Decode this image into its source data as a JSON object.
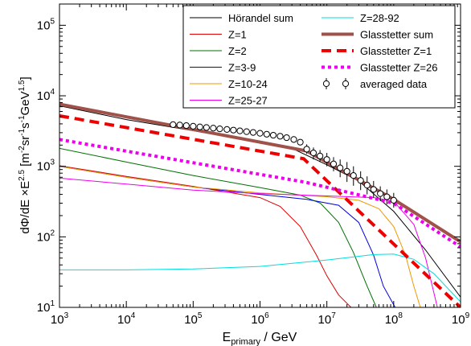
{
  "chart_data": {
    "type": "line",
    "xlabel_main": "E",
    "xlabel_sub": "primary",
    "xlabel_unit": " / GeV",
    "ylabel": {
      "p1": "dΦ/dE ×E",
      "p1_sup": "2.5",
      "p2": " [m",
      "p2_sup": "-2",
      "p3": "sr",
      "p3_sup": "-1",
      "p4": "s",
      "p4_sup": "-1",
      "p5": "GeV",
      "p5_sup": "1.5",
      "p6": "]"
    },
    "x_log": true,
    "y_log": true,
    "xlim": [
      1000,
      1000000000
    ],
    "ylim": [
      10,
      200000
    ],
    "x_ticks": [
      {
        "base": "10",
        "exp": "3",
        "value": 1000
      },
      {
        "base": "10",
        "exp": "4",
        "value": 10000
      },
      {
        "base": "10",
        "exp": "5",
        "value": 100000
      },
      {
        "base": "10",
        "exp": "6",
        "value": 1000000
      },
      {
        "base": "10",
        "exp": "7",
        "value": 10000000
      },
      {
        "base": "10",
        "exp": "8",
        "value": 100000000
      },
      {
        "base": "10",
        "exp": "9",
        "value": 1000000000
      }
    ],
    "y_ticks": [
      {
        "base": "10",
        "exp": "1",
        "value": 10
      },
      {
        "base": "10",
        "exp": "2",
        "value": 100
      },
      {
        "base": "10",
        "exp": "3",
        "value": 1000
      },
      {
        "base": "10",
        "exp": "4",
        "value": 10000
      },
      {
        "base": "10",
        "exp": "5",
        "value": 100000
      }
    ],
    "grid": false,
    "legend_position": "top-right",
    "series": [
      {
        "id": "horandel-sum",
        "name": "Hörandel sum",
        "color": "#000000",
        "style": "solid",
        "width": 1,
        "points": [
          [
            1000.0,
            7200
          ],
          [
            10000.0,
            4600
          ],
          [
            100000.0,
            3200
          ],
          [
            1000000.0,
            2200
          ],
          [
            3000000.0,
            1800
          ],
          [
            10000000.0,
            1050
          ],
          [
            30000000.0,
            620
          ],
          [
            100000000.0,
            230
          ],
          [
            300000000.0,
            65
          ],
          [
            1000000000.0,
            14
          ]
        ]
      },
      {
        "id": "z1",
        "name": "Z=1",
        "color": "#dd0000",
        "style": "solid",
        "width": 1,
        "points": [
          [
            1000.0,
            1020
          ],
          [
            10000.0,
            720
          ],
          [
            100000.0,
            520
          ],
          [
            1000000.0,
            360
          ],
          [
            2000000.0,
            270
          ],
          [
            4000000.0,
            140
          ],
          [
            7000000.0,
            55
          ],
          [
            10000000.0,
            28
          ],
          [
            15000000.0,
            15
          ],
          [
            23000000.0,
            10
          ]
        ]
      },
      {
        "id": "z2",
        "name": "Z=2",
        "color": "#007000",
        "style": "solid",
        "width": 1,
        "points": [
          [
            1000.0,
            1800
          ],
          [
            10000.0,
            1150
          ],
          [
            100000.0,
            740
          ],
          [
            1000000.0,
            500
          ],
          [
            4000000.0,
            390
          ],
          [
            8000000.0,
            300
          ],
          [
            15000000.0,
            160
          ],
          [
            25000000.0,
            60
          ],
          [
            40000000.0,
            20
          ],
          [
            55000000.0,
            10
          ]
        ]
      },
      {
        "id": "z3-9",
        "name": "Z=3-9",
        "color": "#0000dd",
        "style": "solid",
        "width": 1,
        "points": [
          [
            1000.0,
            1000
          ],
          [
            10000.0,
            700
          ],
          [
            100000.0,
            510
          ],
          [
            1000000.0,
            400
          ],
          [
            5000000.0,
            340
          ],
          [
            15000000.0,
            280
          ],
          [
            30000000.0,
            160
          ],
          [
            50000000.0,
            55
          ],
          [
            70000000.0,
            20
          ],
          [
            105000000.0,
            10
          ]
        ]
      },
      {
        "id": "z10-24",
        "name": "Z=10-24",
        "color": "#ee9900",
        "style": "solid",
        "width": 1,
        "points": [
          [
            1000.0,
            1000
          ],
          [
            10000.0,
            700
          ],
          [
            100000.0,
            510
          ],
          [
            1000000.0,
            420
          ],
          [
            10000000.0,
            370
          ],
          [
            30000000.0,
            330
          ],
          [
            60000000.0,
            250
          ],
          [
            100000000.0,
            140
          ],
          [
            150000000.0,
            55
          ],
          [
            200000000.0,
            20
          ],
          [
            250000000.0,
            10
          ]
        ]
      },
      {
        "id": "z25-27",
        "name": "Z=25-27",
        "color": "#ee00ee",
        "style": "solid",
        "width": 1,
        "points": [
          [
            1000.0,
            680
          ],
          [
            10000.0,
            560
          ],
          [
            100000.0,
            460
          ],
          [
            1000000.0,
            410
          ],
          [
            10000000.0,
            380
          ],
          [
            50000000.0,
            360
          ],
          [
            100000000.0,
            320
          ],
          [
            200000000.0,
            150
          ],
          [
            300000000.0,
            50
          ],
          [
            450000000.0,
            10
          ]
        ]
      },
      {
        "id": "z28-92",
        "name": "Z=28-92",
        "color": "#00dddd",
        "style": "solid",
        "width": 1,
        "points": [
          [
            1000.0,
            34
          ],
          [
            10000.0,
            34
          ],
          [
            100000.0,
            35
          ],
          [
            1000000.0,
            38
          ],
          [
            10000000.0,
            47
          ],
          [
            50000000.0,
            56
          ],
          [
            100000000.0,
            57
          ],
          [
            200000000.0,
            48
          ],
          [
            400000000.0,
            30
          ],
          [
            600000000.0,
            20
          ],
          [
            1000000000.0,
            12
          ]
        ]
      },
      {
        "id": "glasstetter-sum",
        "name": "Glasstetter sum",
        "color": "#a0524a",
        "style": "solid",
        "width": 4,
        "points": [
          [
            1000.0,
            7600
          ],
          [
            5000000.0,
            1650
          ],
          [
            100000000.0,
            340
          ],
          [
            1000000000.0,
            85
          ]
        ]
      },
      {
        "id": "glasstetter-z1",
        "name": "Glasstetter Z=1",
        "color": "#ee0000",
        "style": "dash",
        "width": 4,
        "points": [
          [
            1000.0,
            5200
          ],
          [
            4500000.0,
            1280
          ],
          [
            1000000000.0,
            10
          ]
        ]
      },
      {
        "id": "glasstetter-z26",
        "name": "Glasstetter Z=26",
        "color": "#ee00ee",
        "style": "dot",
        "width": 4,
        "points": [
          [
            1000.0,
            2400
          ],
          [
            5000000.0,
            590
          ],
          [
            100000000.0,
            300
          ],
          [
            1000000000.0,
            72
          ]
        ]
      }
    ],
    "averaged_data": {
      "name": "averaged data",
      "points": [
        [
          50000.0,
          3900
        ],
        [
          63000.0,
          3850
        ],
        [
          79000.0,
          3780
        ],
        [
          100000.0,
          3700
        ],
        [
          126000.0,
          3620
        ],
        [
          158000.0,
          3550
        ],
        [
          200000.0,
          3480
        ],
        [
          250000.0,
          3400
        ],
        [
          320000.0,
          3330
        ],
        [
          400000.0,
          3260
        ],
        [
          500000.0,
          3180
        ],
        [
          630000.0,
          3100
        ],
        [
          790000.0,
          3020
        ],
        [
          1000000.0,
          2940
        ],
        [
          1260000.0,
          2850
        ],
        [
          1580000.0,
          2760
        ],
        [
          2000000.0,
          2670
        ],
        [
          2500000.0,
          2550
        ],
        [
          3200000.0,
          2400
        ],
        [
          4000000.0,
          2200
        ],
        [
          5000000.0,
          1750
        ],
        [
          6300000.0,
          1550
        ],
        [
          7900000.0,
          1400
        ],
        [
          10000000.0,
          1250
        ],
        [
          12600000.0,
          1080
        ],
        [
          15800000.0,
          950
        ],
        [
          20000000.0,
          850
        ],
        [
          25000000.0,
          740
        ],
        [
          32000000.0,
          630
        ],
        [
          40000000.0,
          540
        ],
        [
          50000000.0,
          470
        ],
        [
          63000000.0,
          410
        ],
        [
          79000000.0,
          370
        ],
        [
          100000000.0,
          330
        ]
      ],
      "error_bars": [
        [
          5000000.0,
          1500,
          2050
        ],
        [
          6300000.0,
          1250,
          1850
        ],
        [
          7900000.0,
          1150,
          1700
        ],
        [
          10000000.0,
          1000,
          1550
        ],
        [
          12600000.0,
          850,
          1350
        ],
        [
          15800000.0,
          700,
          1250
        ],
        [
          20000000.0,
          600,
          1150
        ],
        [
          25000000.0,
          530,
          1000
        ],
        [
          32000000.0,
          460,
          850
        ],
        [
          40000000.0,
          400,
          720
        ],
        [
          50000000.0,
          360,
          620
        ],
        [
          63000000.0,
          320,
          520
        ],
        [
          79000000.0,
          290,
          470
        ],
        [
          100000000.0,
          260,
          420
        ]
      ]
    }
  }
}
